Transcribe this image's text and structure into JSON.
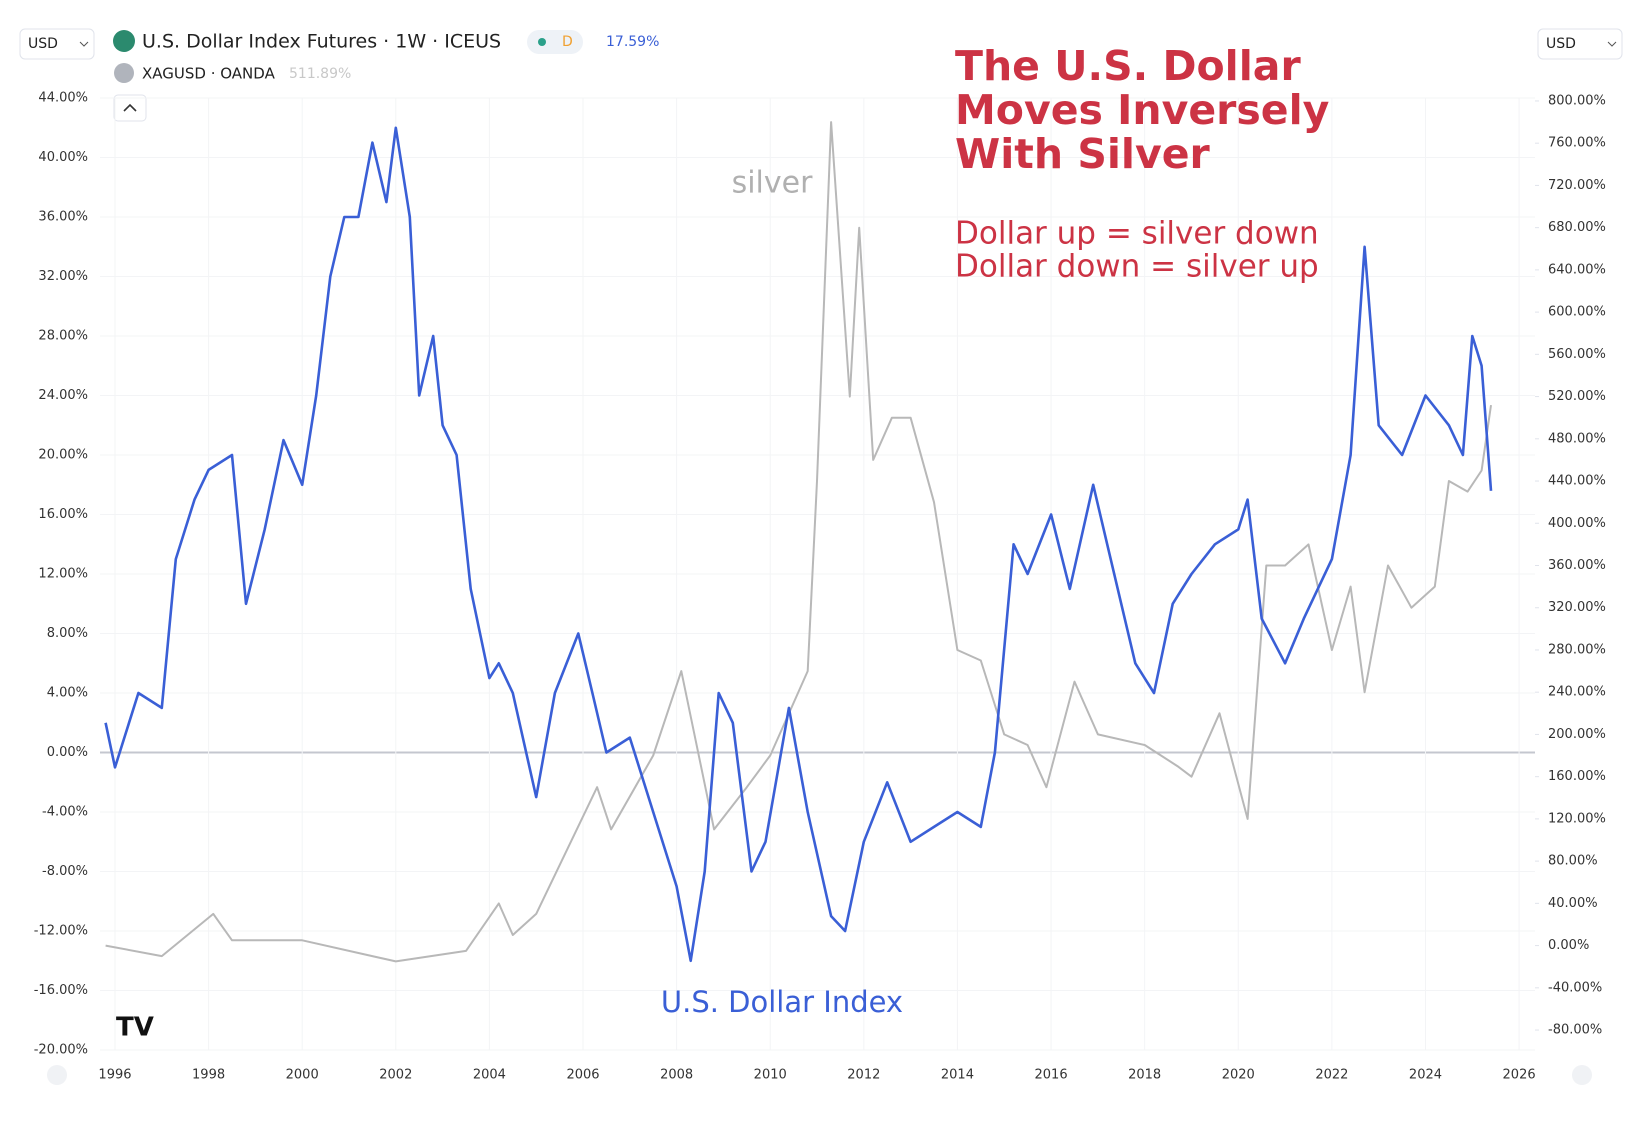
{
  "chart_data": {
    "type": "line",
    "title": [
      "The U.S. Dollar",
      "Moves Inversely",
      "With Silver"
    ],
    "subtitle": [
      "Dollar up = silver down",
      "Dollar down = silver up"
    ],
    "currency_left": "USD",
    "currency_right": "USD",
    "annotations": {
      "silver": "silver",
      "dollar": "U.S. Dollar Index"
    },
    "xlim": [
      1995.68,
      2026.34
    ],
    "xticks": [
      1996,
      1998,
      2000,
      2002,
      2004,
      2006,
      2008,
      2010,
      2012,
      2014,
      2016,
      2018,
      2020,
      2022,
      2024,
      2026
    ],
    "ylim": [
      -20,
      44
    ],
    "yticks": [
      {
        "value": -20,
        "label": "-20.00%"
      },
      {
        "value": -16,
        "label": "-16.00%"
      },
      {
        "value": -12,
        "label": "-12.00%"
      },
      {
        "value": -8,
        "label": "-8.00%"
      },
      {
        "value": -4,
        "label": "-4.00%"
      },
      {
        "value": 0,
        "label": "0.00%"
      },
      {
        "value": 4,
        "label": "4.00%"
      },
      {
        "value": 8,
        "label": "8.00%"
      },
      {
        "value": 12,
        "label": "12.00%"
      },
      {
        "value": 16,
        "label": "16.00%"
      },
      {
        "value": 20,
        "label": "20.00%"
      },
      {
        "value": 24,
        "label": "24.00%"
      },
      {
        "value": 28,
        "label": "28.00%"
      },
      {
        "value": 32,
        "label": "32.00%"
      },
      {
        "value": 36,
        "label": "36.00%"
      },
      {
        "value": 40,
        "label": "40.00%"
      },
      {
        "value": 44,
        "label": "44.00%"
      }
    ],
    "y2lim": [
      -98.9,
      802.8
    ],
    "y2ticks": [
      {
        "value": -80,
        "label": "-80.00%"
      },
      {
        "value": -40,
        "label": "-40.00%"
      },
      {
        "value": 0,
        "label": "0.00%"
      },
      {
        "value": 40,
        "label": "40.00%"
      },
      {
        "value": 80,
        "label": "80.00%"
      },
      {
        "value": 120,
        "label": "120.00%"
      },
      {
        "value": 160,
        "label": "160.00%"
      },
      {
        "value": 200,
        "label": "200.00%"
      },
      {
        "value": 240,
        "label": "240.00%"
      },
      {
        "value": 280,
        "label": "280.00%"
      },
      {
        "value": 320,
        "label": "320.00%"
      },
      {
        "value": 360,
        "label": "360.00%"
      },
      {
        "value": 400,
        "label": "400.00%"
      },
      {
        "value": 440,
        "label": "440.00%"
      },
      {
        "value": 480,
        "label": "480.00%"
      },
      {
        "value": 520,
        "label": "520.00%"
      },
      {
        "value": 560,
        "label": "560.00%"
      },
      {
        "value": 600,
        "label": "600.00%"
      },
      {
        "value": 640,
        "label": "640.00%"
      },
      {
        "value": 680,
        "label": "680.00%"
      },
      {
        "value": 720,
        "label": "720.00%"
      },
      {
        "value": 760,
        "label": "760.00%"
      },
      {
        "value": 800,
        "label": "800.00%"
      }
    ],
    "grid": true,
    "series": [
      {
        "name": "U.S. Dollar Index Futures · 1W · ICEUS",
        "color": "#3a5fd6",
        "legend_value": "17.59%",
        "legend_interval": "D",
        "x": [
          1995.8,
          1996.0,
          1996.5,
          1997.0,
          1997.3,
          1997.7,
          1998.0,
          1998.5,
          1998.8,
          1999.2,
          1999.6,
          2000.0,
          2000.3,
          2000.6,
          2000.9,
          2001.2,
          2001.5,
          2001.8,
          2002.0,
          2002.3,
          2002.5,
          2002.8,
          2003.0,
          2003.3,
          2003.6,
          2004.0,
          2004.2,
          2004.5,
          2005.0,
          2005.4,
          2005.9,
          2006.2,
          2006.5,
          2007.0,
          2007.5,
          2008.0,
          2008.3,
          2008.6,
          2008.9,
          2009.2,
          2009.6,
          2009.9,
          2010.4,
          2010.8,
          2011.3,
          2011.6,
          2012.0,
          2012.5,
          2013.0,
          2013.5,
          2014.0,
          2014.5,
          2014.8,
          2015.2,
          2015.5,
          2016.0,
          2016.4,
          2016.9,
          2017.2,
          2017.8,
          2018.2,
          2018.6,
          2019.0,
          2019.5,
          2020.0,
          2020.2,
          2020.5,
          2021.0,
          2021.4,
          2022.0,
          2022.4,
          2022.7,
          2023.0,
          2023.5,
          2024.0,
          2024.5,
          2024.8,
          2025.0,
          2025.2,
          2025.4
        ],
        "values": [
          2,
          -1,
          4,
          3,
          13,
          17,
          19,
          20,
          10,
          15,
          21,
          18,
          24,
          32,
          36,
          36,
          41,
          37,
          42,
          36,
          24,
          28,
          22,
          20,
          11,
          5,
          6,
          4,
          -3,
          4,
          8,
          4,
          0,
          1,
          -4,
          -9,
          -14,
          -8,
          4,
          2,
          -8,
          -6,
          3,
          -4,
          -11,
          -12,
          -6,
          -2,
          -6,
          -5,
          -4,
          -5,
          0,
          14,
          12,
          16,
          11,
          18,
          14,
          6,
          4,
          10,
          12,
          14,
          15,
          17,
          9,
          6,
          9,
          13,
          20,
          34,
          22,
          20,
          24,
          22,
          20,
          28,
          26,
          17.59
        ]
      },
      {
        "name": "XAGUSD · OANDA",
        "color": "#b8b8b8",
        "legend_value": "511.89%",
        "axis": "y2",
        "x": [
          1995.8,
          1997.0,
          1998.1,
          1998.5,
          2000.0,
          2002.0,
          2003.5,
          2004.2,
          2004.5,
          2005.0,
          2006.3,
          2006.6,
          2007.5,
          2008.1,
          2008.8,
          2009.5,
          2010.0,
          2010.8,
          2011.0,
          2011.3,
          2011.7,
          2011.9,
          2012.2,
          2012.6,
          2013.0,
          2013.5,
          2014.0,
          2014.5,
          2015.0,
          2015.5,
          2015.9,
          2016.5,
          2017.0,
          2018.0,
          2018.7,
          2019.0,
          2019.6,
          2020.2,
          2020.6,
          2021.0,
          2021.5,
          2022.0,
          2022.4,
          2022.7,
          2023.2,
          2023.7,
          2024.2,
          2024.5,
          2024.9,
          2025.2,
          2025.4
        ],
        "values": [
          0,
          -10,
          30,
          5,
          5,
          -15,
          -5,
          40,
          10,
          30,
          150,
          110,
          180,
          260,
          110,
          150,
          180,
          260,
          440,
          780,
          520,
          680,
          460,
          500,
          500,
          420,
          280,
          270,
          200,
          190,
          150,
          250,
          200,
          190,
          170,
          160,
          220,
          120,
          360,
          360,
          380,
          280,
          340,
          240,
          360,
          320,
          340,
          440,
          430,
          450,
          511.89
        ]
      }
    ]
  }
}
